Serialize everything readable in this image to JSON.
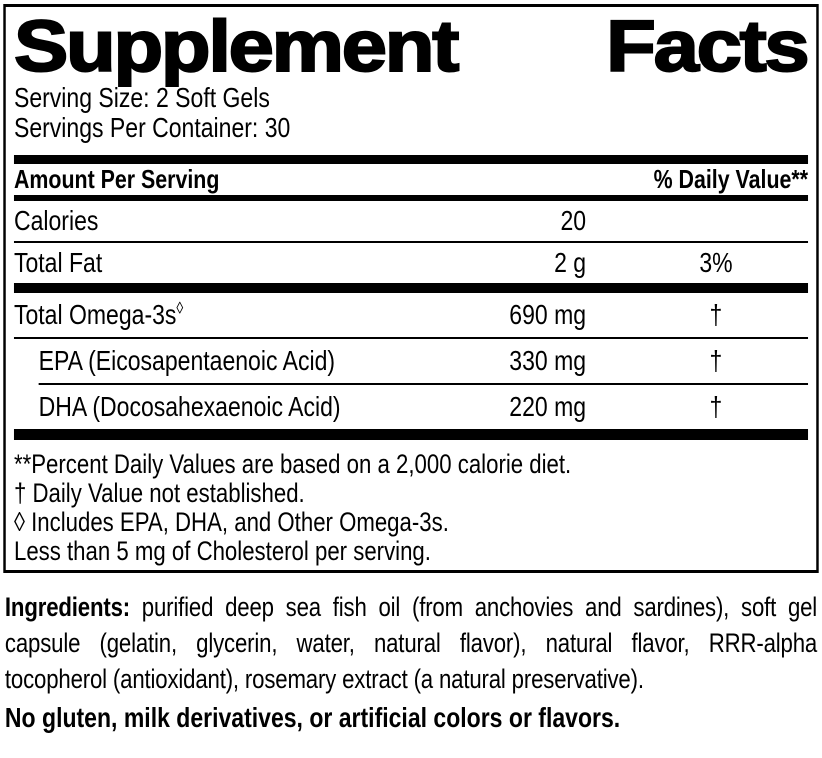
{
  "colors": {
    "ink": "#000000",
    "paper": "#ffffff"
  },
  "label": {
    "title": {
      "word1": "Supplement",
      "word2": "Facts"
    },
    "serving_size": "Serving Size: 2 Soft Gels",
    "servings_per_container": "Servings Per Container: 30",
    "header": {
      "amount_per_serving": "Amount Per Serving",
      "daily_value": "% Daily Value**"
    },
    "rows": [
      {
        "name": "Calories",
        "amount": "20",
        "dv": ""
      },
      {
        "name": "Total Fat",
        "amount": "2 g",
        "dv": "3%"
      },
      {
        "name": "Total Omega-3s",
        "name_suffix": "◊",
        "amount": "690 mg",
        "dv": "†"
      },
      {
        "name": "EPA (Eicosapentaenoic Acid)",
        "amount": "330 mg",
        "dv": "†"
      },
      {
        "name": "DHA (Docosahexaenoic Acid)",
        "amount": "220 mg",
        "dv": "†"
      }
    ],
    "footnotes": [
      "**Percent Daily Values are based on a 2,000 calorie diet.",
      "† Daily Value not established.",
      "◊ Includes EPA, DHA, and Other Omega-3s.",
      "Less than 5 mg of Cholesterol per serving."
    ]
  },
  "below_label": {
    "ingredients_label": "Ingredients:",
    "ingredients_text": " purified deep sea fish oil (from anchovies and sardines), soft gel capsule (gelatin, glycerin, water, natural flavor), natural flavor, RRR-alpha tocopherol (antioxidant), rosemary extract (a natural preservative).",
    "claim": "No gluten, milk derivatives, or artificial colors or flavors."
  }
}
